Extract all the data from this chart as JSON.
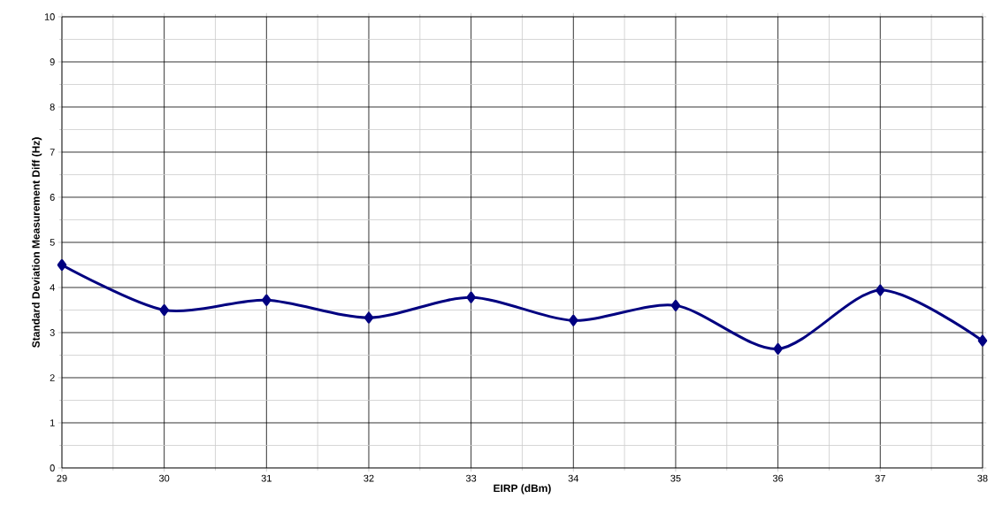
{
  "chart_data": {
    "type": "line",
    "xlabel": "EIRP (dBm)",
    "ylabel": "Standard Deviation Measurement Diff (Hz)",
    "x": [
      29,
      30,
      31,
      32,
      33,
      34,
      35,
      36,
      37,
      38
    ],
    "series": [
      {
        "color": "#000080",
        "values": [
          4.5,
          3.5,
          3.72,
          3.33,
          3.78,
          3.27,
          3.6,
          2.64,
          3.94,
          2.82
        ]
      }
    ],
    "xlim": [
      29,
      38
    ],
    "ylim": [
      0,
      10
    ],
    "xticks": [
      29,
      30,
      31,
      32,
      33,
      34,
      35,
      36,
      37,
      38
    ],
    "yticks": [
      0,
      1,
      2,
      3,
      4,
      5,
      6,
      7,
      8,
      9,
      10
    ],
    "grid": true,
    "marker": "diamond",
    "line_style": "solid"
  }
}
